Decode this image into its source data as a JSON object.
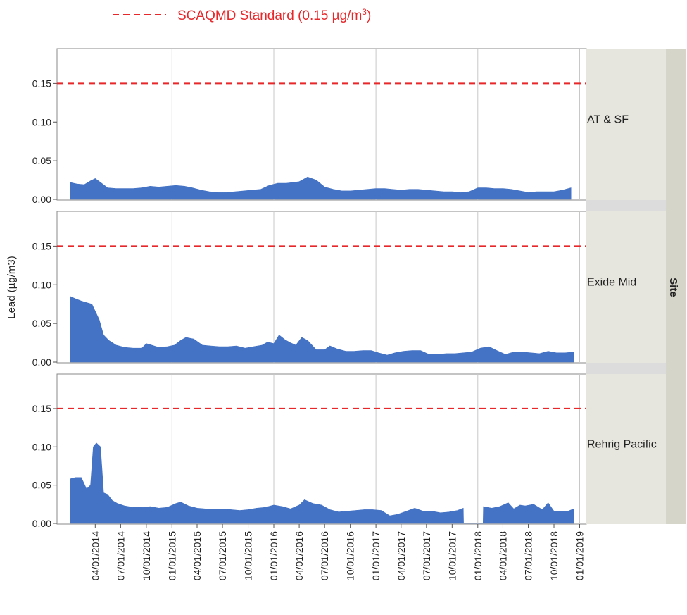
{
  "chart_data": {
    "type": "area",
    "legend": {
      "label_prefix": "SCAQMD Standard (0.15 µg/m",
      "label_sup": "3",
      "label_suffix": ")",
      "position": "top-left",
      "style": "dashed-red"
    },
    "ylabel": "Lead (µg/m3)",
    "group_label": "Site",
    "standard_value": 0.15,
    "ylim": [
      0,
      0.195
    ],
    "yticks": [
      0.0,
      0.05,
      0.1,
      0.15
    ],
    "ytick_labels": [
      "0.00",
      "0.05",
      "0.10",
      "0.15"
    ],
    "xlim": [
      "2013-11-15",
      "2019-01-25"
    ],
    "xticks": [
      "2014-04-01",
      "2014-07-01",
      "2014-10-01",
      "2015-01-01",
      "2015-04-01",
      "2015-07-01",
      "2015-10-01",
      "2016-01-01",
      "2016-04-01",
      "2016-07-01",
      "2016-10-01",
      "2017-01-01",
      "2017-04-01",
      "2017-07-01",
      "2017-10-01",
      "2018-01-01",
      "2018-04-01",
      "2018-07-01",
      "2018-10-01",
      "2019-01-01"
    ],
    "xtick_labels": [
      "04/01/2014",
      "07/01/2014",
      "10/01/2014",
      "01/01/2015",
      "04/01/2015",
      "07/01/2015",
      "10/01/2015",
      "01/01/2016",
      "04/01/2016",
      "07/01/2016",
      "10/01/2016",
      "01/01/2017",
      "04/01/2017",
      "07/01/2017",
      "10/01/2017",
      "01/01/2018",
      "04/01/2018",
      "07/01/2018",
      "10/01/2018",
      "01/01/2019"
    ],
    "gridlines_x": [
      "2015-01-01",
      "2016-01-01",
      "2017-01-01",
      "2018-01-01",
      "2019-01-01"
    ],
    "colors": {
      "series": "#4472c4",
      "standard": "#e8272a",
      "strip": "#e7e6de",
      "strip_dark": "#d6d5c9"
    },
    "panels": [
      {
        "site": "AT & SF",
        "series": [
          {
            "x": [
              "2014-01-01",
              "2014-01-25",
              "2014-02-20",
              "2014-03-15",
              "2014-04-01",
              "2014-04-20",
              "2014-05-15",
              "2014-06-15",
              "2014-07-15",
              "2014-08-15",
              "2014-09-15",
              "2014-10-15",
              "2014-11-15",
              "2014-12-15",
              "2015-01-15",
              "2015-02-15",
              "2015-03-15",
              "2015-04-15",
              "2015-05-15",
              "2015-06-15",
              "2015-07-15",
              "2015-08-15",
              "2015-09-15",
              "2015-10-15",
              "2015-11-15",
              "2015-12-15",
              "2016-01-15",
              "2016-02-15",
              "2016-03-10",
              "2016-04-01",
              "2016-05-01",
              "2016-06-01",
              "2016-07-01",
              "2016-08-01",
              "2016-09-01",
              "2016-10-01",
              "2016-11-01",
              "2016-12-01",
              "2017-01-01",
              "2017-02-01",
              "2017-03-01",
              "2017-04-01",
              "2017-05-01",
              "2017-06-01",
              "2017-07-01",
              "2017-08-01",
              "2017-09-01",
              "2017-10-01",
              "2017-11-01",
              "2017-12-01",
              "2018-01-01",
              "2018-02-01",
              "2018-03-01",
              "2018-04-01",
              "2018-05-01",
              "2018-06-01",
              "2018-07-01",
              "2018-08-01",
              "2018-09-01",
              "2018-10-01",
              "2018-11-01",
              "2018-12-01"
            ],
            "y": [
              0.022,
              0.02,
              0.019,
              0.024,
              0.027,
              0.022,
              0.015,
              0.014,
              0.014,
              0.014,
              0.015,
              0.017,
              0.016,
              0.017,
              0.018,
              0.017,
              0.015,
              0.012,
              0.01,
              0.009,
              0.009,
              0.01,
              0.011,
              0.012,
              0.013,
              0.018,
              0.021,
              0.021,
              0.022,
              0.023,
              0.029,
              0.025,
              0.016,
              0.013,
              0.011,
              0.011,
              0.012,
              0.013,
              0.014,
              0.014,
              0.013,
              0.012,
              0.013,
              0.013,
              0.012,
              0.011,
              0.01,
              0.01,
              0.009,
              0.01,
              0.015,
              0.015,
              0.014,
              0.014,
              0.013,
              0.011,
              0.009,
              0.01,
              0.01,
              0.01,
              0.012,
              0.015
            ]
          }
        ]
      },
      {
        "site": "Exide Mid",
        "series": [
          {
            "x": [
              "2014-01-01",
              "2014-01-20",
              "2014-02-10",
              "2014-03-01",
              "2014-03-20",
              "2014-04-15",
              "2014-05-01",
              "2014-05-20",
              "2014-06-15",
              "2014-07-15",
              "2014-08-15",
              "2014-09-15",
              "2014-10-01",
              "2014-10-20",
              "2014-11-15",
              "2014-12-15",
              "2015-01-10",
              "2015-02-01",
              "2015-02-20",
              "2015-03-20",
              "2015-04-20",
              "2015-05-20",
              "2015-06-20",
              "2015-07-20",
              "2015-08-20",
              "2015-09-20",
              "2015-10-20",
              "2015-11-20",
              "2015-12-10",
              "2016-01-01",
              "2016-01-20",
              "2016-02-10",
              "2016-03-01",
              "2016-03-20",
              "2016-04-10",
              "2016-05-01",
              "2016-06-01",
              "2016-07-01",
              "2016-07-20",
              "2016-08-15",
              "2016-09-15",
              "2016-10-15",
              "2016-11-15",
              "2016-12-15",
              "2017-01-10",
              "2017-02-10",
              "2017-03-10",
              "2017-04-10",
              "2017-05-10",
              "2017-06-10",
              "2017-07-10",
              "2017-08-10",
              "2017-09-10",
              "2017-10-10",
              "2017-11-10",
              "2017-12-10",
              "2018-01-10",
              "2018-02-10",
              "2018-03-10",
              "2018-04-10",
              "2018-05-10",
              "2018-06-10",
              "2018-07-10",
              "2018-08-10",
              "2018-09-10",
              "2018-10-10",
              "2018-11-10",
              "2018-12-10"
            ],
            "y": [
              0.085,
              0.082,
              0.079,
              0.077,
              0.075,
              0.055,
              0.035,
              0.028,
              0.022,
              0.019,
              0.018,
              0.018,
              0.024,
              0.022,
              0.019,
              0.02,
              0.022,
              0.028,
              0.032,
              0.03,
              0.022,
              0.021,
              0.02,
              0.02,
              0.021,
              0.018,
              0.02,
              0.022,
              0.026,
              0.024,
              0.035,
              0.029,
              0.025,
              0.022,
              0.032,
              0.028,
              0.016,
              0.016,
              0.021,
              0.017,
              0.014,
              0.014,
              0.015,
              0.015,
              0.012,
              0.009,
              0.012,
              0.014,
              0.015,
              0.015,
              0.01,
              0.01,
              0.011,
              0.011,
              0.012,
              0.013,
              0.018,
              0.02,
              0.015,
              0.01,
              0.013,
              0.013,
              0.012,
              0.011,
              0.014,
              0.012,
              0.012,
              0.013
            ]
          }
        ]
      },
      {
        "site": "Rehrig Pacific",
        "series": [
          {
            "x": [
              "2014-01-01",
              "2014-01-20",
              "2014-02-10",
              "2014-03-01",
              "2014-03-15",
              "2014-03-25",
              "2014-04-05",
              "2014-04-20",
              "2014-05-01",
              "2014-05-15",
              "2014-06-01",
              "2014-06-20",
              "2014-07-15",
              "2014-08-15",
              "2014-09-15",
              "2014-10-15",
              "2014-11-15",
              "2014-12-15",
              "2015-01-15",
              "2015-02-01",
              "2015-03-01",
              "2015-04-01",
              "2015-05-01",
              "2015-06-01",
              "2015-07-01",
              "2015-08-01",
              "2015-09-01",
              "2015-10-01",
              "2015-11-01",
              "2015-12-01",
              "2016-01-01",
              "2016-02-01",
              "2016-03-01",
              "2016-04-01",
              "2016-04-20",
              "2016-05-20",
              "2016-06-20",
              "2016-07-20",
              "2016-08-20",
              "2016-09-20",
              "2016-10-20",
              "2016-11-20",
              "2016-12-20",
              "2017-01-20",
              "2017-02-20",
              "2017-03-20",
              "2017-04-20",
              "2017-05-20",
              "2017-06-20",
              "2017-07-20",
              "2017-08-20",
              "2017-09-20",
              "2017-10-20",
              "2017-11-10",
              "2017-11-11",
              "2018-01-20",
              "2018-01-21",
              "2018-02-20",
              "2018-03-20",
              "2018-04-20",
              "2018-05-10",
              "2018-06-01",
              "2018-06-20",
              "2018-07-20",
              "2018-08-20",
              "2018-09-10",
              "2018-10-01",
              "2018-10-20",
              "2018-11-20",
              "2018-12-10"
            ],
            "y": [
              0.058,
              0.06,
              0.06,
              0.045,
              0.05,
              0.1,
              0.105,
              0.1,
              0.04,
              0.038,
              0.03,
              0.026,
              0.023,
              0.021,
              0.021,
              0.022,
              0.02,
              0.021,
              0.026,
              0.028,
              0.023,
              0.02,
              0.019,
              0.019,
              0.019,
              0.018,
              0.017,
              0.018,
              0.02,
              0.021,
              0.024,
              0.022,
              0.019,
              0.024,
              0.031,
              0.026,
              0.024,
              0.018,
              0.015,
              0.016,
              0.017,
              0.018,
              0.018,
              0.017,
              0.01,
              0.012,
              0.016,
              0.02,
              0.016,
              0.016,
              0.014,
              0.015,
              0.017,
              0.02,
              0,
              0,
              0.022,
              0.02,
              0.022,
              0.027,
              0.019,
              0.024,
              0.023,
              0.025,
              0.018,
              0.027,
              0.016,
              0.016,
              0.016,
              0.019
            ]
          }
        ]
      }
    ]
  }
}
